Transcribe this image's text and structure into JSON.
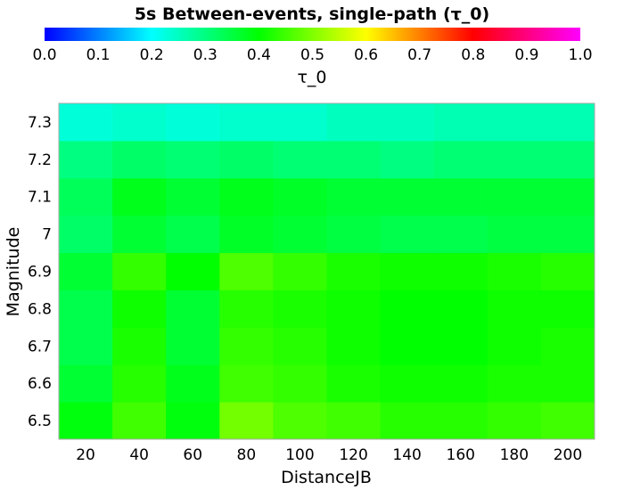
{
  "chart_data": {
    "type": "heatmap",
    "title": "5s Between-events, single-path (τ_0)",
    "xlabel": "DistanceJB",
    "ylabel": "Magnitude",
    "x": [
      20,
      40,
      60,
      80,
      100,
      120,
      140,
      160,
      180,
      200
    ],
    "x_tick_labels": [
      "20",
      "40",
      "60",
      "80",
      "100",
      "120",
      "140",
      "160",
      "180",
      "200"
    ],
    "y": [
      6.5,
      6.6,
      6.7,
      6.8,
      6.9,
      7.0,
      7.1,
      7.2,
      7.3
    ],
    "y_tick_labels": [
      "6.5",
      "6.6",
      "6.7",
      "6.8",
      "6.9",
      "7",
      "7.1",
      "7.2",
      "7.3"
    ],
    "xlim": [
      10,
      210
    ],
    "ylim": [
      6.45,
      7.35
    ],
    "colorbar": {
      "label": "τ_0",
      "range": [
        0.0,
        1.0
      ],
      "tick_labels": [
        "0.0",
        "0.1",
        "0.2",
        "0.3",
        "0.4",
        "0.5",
        "0.6",
        "0.7",
        "0.8",
        "0.9",
        "1.0"
      ],
      "colormap": [
        "#0000ff",
        "#00ffff",
        "#00ff00",
        "#ffff00",
        "#ff0000",
        "#ff00ff"
      ]
    },
    "values": [
      [
        0.39,
        0.45,
        0.39,
        0.49,
        0.46,
        0.45,
        0.43,
        0.43,
        0.44,
        0.45
      ],
      [
        0.36,
        0.43,
        0.38,
        0.45,
        0.44,
        0.42,
        0.41,
        0.41,
        0.42,
        0.42
      ],
      [
        0.34,
        0.42,
        0.36,
        0.44,
        0.43,
        0.41,
        0.4,
        0.4,
        0.41,
        0.42
      ],
      [
        0.34,
        0.41,
        0.36,
        0.43,
        0.42,
        0.41,
        0.4,
        0.4,
        0.41,
        0.41
      ],
      [
        0.36,
        0.44,
        0.4,
        0.46,
        0.44,
        0.42,
        0.41,
        0.41,
        0.42,
        0.43
      ],
      [
        0.32,
        0.36,
        0.34,
        0.37,
        0.36,
        0.35,
        0.34,
        0.34,
        0.35,
        0.35
      ],
      [
        0.33,
        0.38,
        0.36,
        0.38,
        0.37,
        0.36,
        0.36,
        0.36,
        0.36,
        0.36
      ],
      [
        0.3,
        0.32,
        0.31,
        0.32,
        0.31,
        0.31,
        0.3,
        0.31,
        0.31,
        0.31
      ],
      [
        0.23,
        0.24,
        0.23,
        0.24,
        0.24,
        0.25,
        0.25,
        0.26,
        0.26,
        0.26
      ]
    ]
  }
}
